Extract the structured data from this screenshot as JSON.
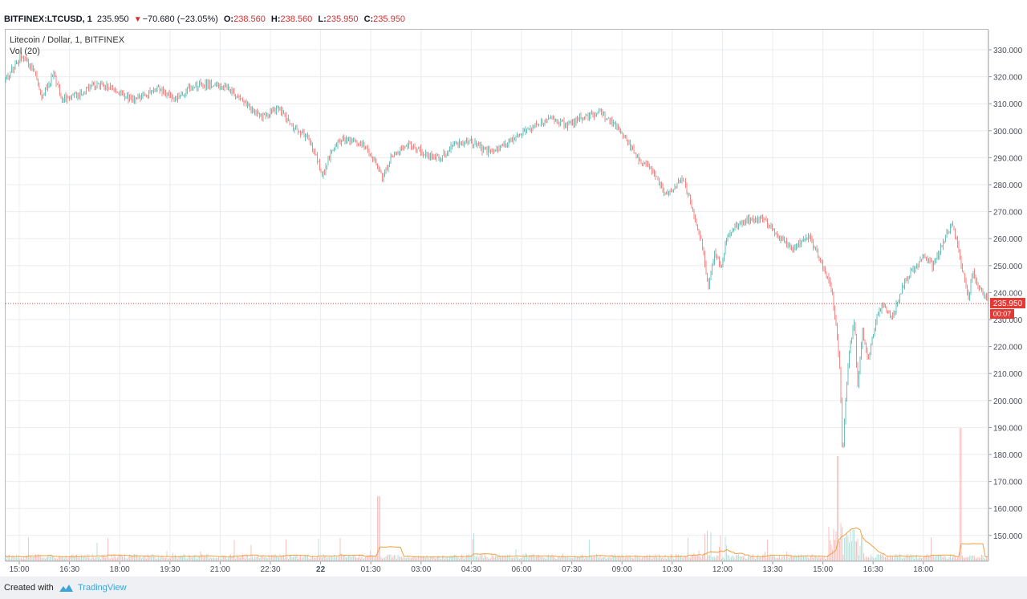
{
  "header": {
    "symbol": "BITFINEX:LTCUSD, 1",
    "last": "235.950",
    "change": "−70.680 (−23.05%)",
    "o_label": "O:",
    "o_value": "238.560",
    "h_label": "H:",
    "h_value": "238.560",
    "l_label": "L:",
    "l_value": "235.950",
    "c_label": "C:",
    "c_value": "235.950"
  },
  "legend": {
    "title": "Litecoin / Dollar, 1, BITFINEX",
    "volume": "Vol (20)"
  },
  "footer": {
    "created_with": "Created with",
    "brand": "TradingView"
  },
  "colors": {
    "up": "#26a69a",
    "down": "#ef5350",
    "grid": "#e9ecef",
    "price_line": "#e53935",
    "volume_ma": "#f0a040"
  },
  "chart_data": {
    "type": "candlestick",
    "interval": "1 minute",
    "y_axis": {
      "range": [
        135,
        335
      ],
      "ticks": [
        "330.000",
        "320.000",
        "310.000",
        "300.000",
        "290.000",
        "280.000",
        "270.000",
        "260.000",
        "250.000",
        "240.000",
        "230.000",
        "220.000",
        "210.000",
        "200.000",
        "190.000",
        "180.000",
        "170.000",
        "160.000",
        "150.000"
      ],
      "position": "right"
    },
    "x_axis": {
      "ticks": [
        "15:00",
        "16:30",
        "18:00",
        "19:30",
        "21:00",
        "22:30",
        "22",
        "01:30",
        "03:00",
        "04:30",
        "06:00",
        "07:30",
        "09:00",
        "10:30",
        "12:00",
        "13:30",
        "15:00",
        "16:30",
        "18:00"
      ]
    },
    "last_price": "235.950",
    "countdown": "00:07",
    "price_path": [
      [
        0,
        319
      ],
      [
        20,
        328
      ],
      [
        35,
        323
      ],
      [
        45,
        313
      ],
      [
        60,
        321
      ],
      [
        70,
        312
      ],
      [
        90,
        313
      ],
      [
        110,
        317
      ],
      [
        130,
        316
      ],
      [
        160,
        311
      ],
      [
        190,
        316
      ],
      [
        210,
        312
      ],
      [
        235,
        317
      ],
      [
        260,
        317
      ],
      [
        280,
        315
      ],
      [
        300,
        310
      ],
      [
        320,
        305
      ],
      [
        340,
        309
      ],
      [
        355,
        302
      ],
      [
        375,
        298
      ],
      [
        388,
        290
      ],
      [
        395,
        283
      ],
      [
        405,
        292
      ],
      [
        420,
        297
      ],
      [
        445,
        295
      ],
      [
        462,
        288
      ],
      [
        470,
        282
      ],
      [
        480,
        290
      ],
      [
        500,
        295
      ],
      [
        520,
        292
      ],
      [
        540,
        290
      ],
      [
        560,
        295
      ],
      [
        580,
        296
      ],
      [
        600,
        292
      ],
      [
        620,
        294
      ],
      [
        640,
        298
      ],
      [
        660,
        302
      ],
      [
        680,
        305
      ],
      [
        700,
        302
      ],
      [
        720,
        305
      ],
      [
        740,
        307
      ],
      [
        760,
        302
      ],
      [
        775,
        296
      ],
      [
        790,
        289
      ],
      [
        805,
        286
      ],
      [
        815,
        280
      ],
      [
        825,
        276
      ],
      [
        835,
        280
      ],
      [
        845,
        282
      ],
      [
        852,
        275
      ],
      [
        860,
        266
      ],
      [
        868,
        258
      ],
      [
        876,
        242
      ],
      [
        884,
        255
      ],
      [
        892,
        250
      ],
      [
        900,
        262
      ],
      [
        915,
        266
      ],
      [
        930,
        267
      ],
      [
        945,
        268
      ],
      [
        960,
        262
      ],
      [
        980,
        256
      ],
      [
        1000,
        261
      ],
      [
        1010,
        256
      ],
      [
        1020,
        249
      ],
      [
        1030,
        240
      ],
      [
        1035,
        228
      ],
      [
        1040,
        210
      ],
      [
        1043,
        178
      ],
      [
        1047,
        200
      ],
      [
        1052,
        220
      ],
      [
        1058,
        230
      ],
      [
        1062,
        205
      ],
      [
        1068,
        225
      ],
      [
        1075,
        215
      ],
      [
        1085,
        230
      ],
      [
        1095,
        236
      ],
      [
        1105,
        230
      ],
      [
        1115,
        240
      ],
      [
        1125,
        246
      ],
      [
        1135,
        250
      ],
      [
        1145,
        254
      ],
      [
        1155,
        250
      ],
      [
        1165,
        256
      ],
      [
        1175,
        263
      ],
      [
        1180,
        265
      ],
      [
        1188,
        255
      ],
      [
        1195,
        245
      ],
      [
        1200,
        238
      ],
      [
        1205,
        248
      ],
      [
        1212,
        242
      ],
      [
        1220,
        239
      ],
      [
        1226,
        236
      ]
    ]
  }
}
